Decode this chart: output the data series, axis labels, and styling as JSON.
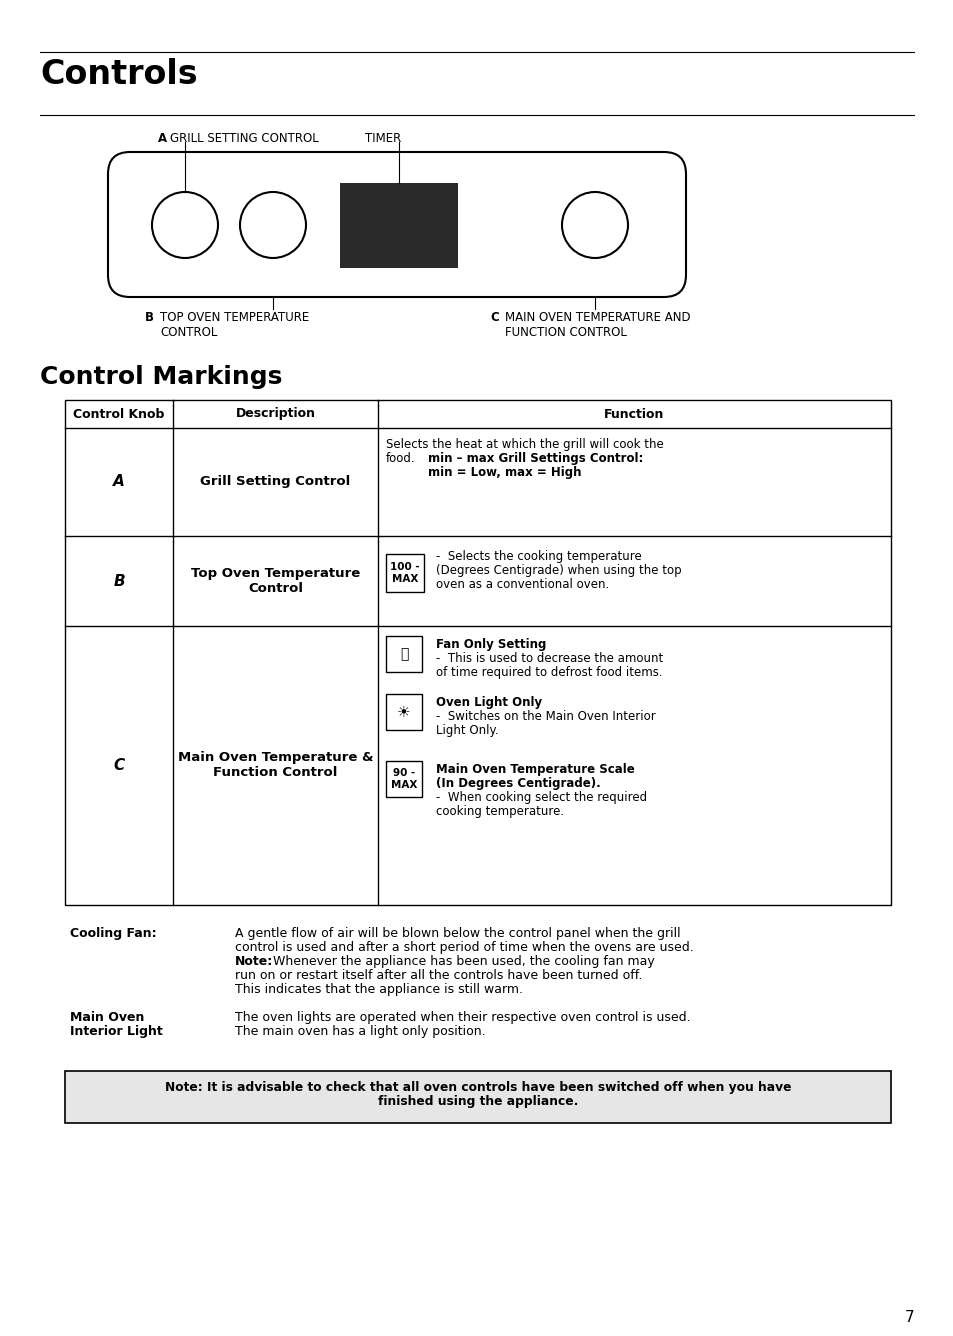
{
  "title": "Controls",
  "subtitle": "Control Markings",
  "bg_color": "#ffffff",
  "label_A": "A",
  "label_A_text": "GRILL SETTING CONTROL",
  "label_TIMER": "TIMER",
  "label_B": "B",
  "label_B_text": "TOP OVEN TEMPERATURE\nCONTROL",
  "label_C": "C",
  "label_C_text": "MAIN OVEN TEMPERATURE AND\nFUNCTION CONTROL",
  "table_headers": [
    "Control Knob",
    "Description",
    "Function"
  ],
  "row_A_knob": "A",
  "row_A_desc": "Grill Setting Control",
  "row_B_knob": "B",
  "row_B_desc": "Top Oven Temperature\nControl",
  "row_B_func_box": "100 -\nMAX",
  "row_C_knob": "C",
  "row_C_desc": "Main Oven Temperature &\nFunction Control",
  "row_C_func1_title": "Fan Only Setting",
  "row_C_func1_text1": "-  This is used to decrease the amount",
  "row_C_func1_text2": "of time required to defrost food items.",
  "row_C_func2_title": "Oven Light Only",
  "row_C_func2_text1": "-  Switches on the Main Oven Interior",
  "row_C_func2_text2": "Light Only.",
  "row_C_func3_box": "90 -\nMAX",
  "row_C_func3_title1": "Main Oven Temperature Scale",
  "row_C_func3_title2": "(In Degrees Centigrade).",
  "row_C_func3_text1": "-  When cooking select the required",
  "row_C_func3_text2": "cooking temperature.",
  "cooling_fan_label": "Cooling Fan:",
  "main_oven_label1": "Main Oven",
  "main_oven_label2": "Interior Light",
  "note_line1": "Note: It is advisable to check that all oven controls have been switched off when you have",
  "note_line2": "finished using the appliance.",
  "page_number": "7"
}
